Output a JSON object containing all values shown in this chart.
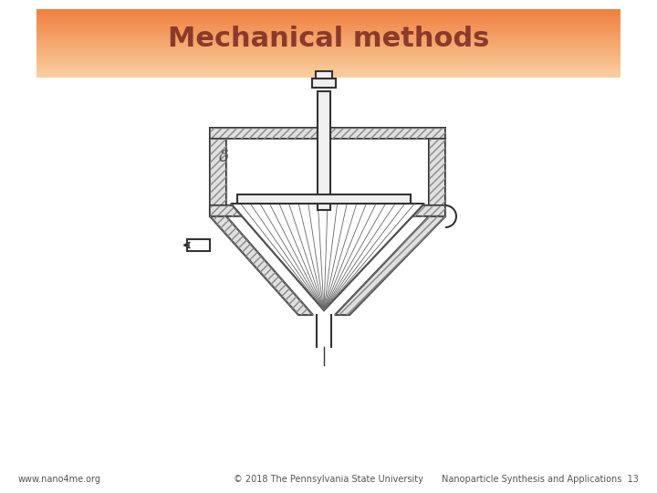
{
  "title": "Mechanical methods",
  "title_color": "#8B3A2A",
  "title_fontsize": 22,
  "header_gradient_top": "#F08040",
  "header_gradient_bottom": "#FAD0A0",
  "background_color": "#FFFFFF",
  "footer_left": "www.nano4me.org",
  "footer_center": "© 2018 The Pennsylvania State University",
  "footer_right": "Nanoparticle Synthesis and Applications  13",
  "footer_fontsize": 7,
  "footer_color": "#555555",
  "delta_label": "δ",
  "line_color": "#333333",
  "hatch_color": "#888888",
  "fill_color": "#F0F0F0",
  "wall_fill": "#E0E0E0"
}
